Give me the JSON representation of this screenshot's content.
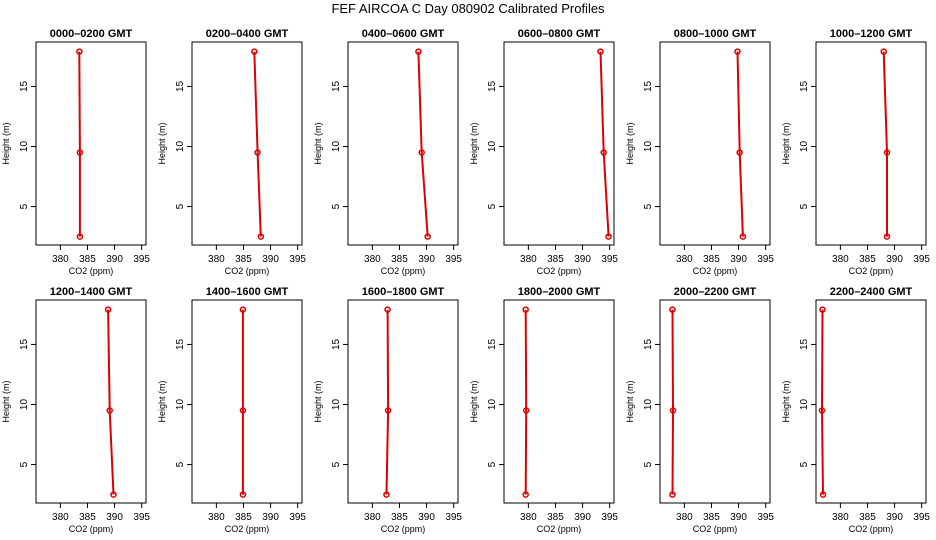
{
  "title": "FEF AIRCOA C  Day 080902  Calibrated Profiles",
  "colors": {
    "profile": "#dd0000",
    "axis": "#000000"
  },
  "chart_data": [
    {
      "type": "line",
      "title": "0000–0200 GMT",
      "xlabel": "CO2 (ppm)",
      "ylabel": "Height (m)",
      "xlim": [
        375.5,
        395.8
      ],
      "ylim": [
        1.8,
        18.7
      ],
      "xticks": [
        380,
        385,
        390,
        395
      ],
      "yticks": [
        5,
        10,
        15
      ],
      "x": [
        383.5,
        383.6,
        383.6
      ],
      "y": [
        17.9,
        9.5,
        2.5
      ]
    },
    {
      "type": "line",
      "title": "0200–0400 GMT",
      "xlabel": "CO2 (ppm)",
      "ylabel": "Height (m)",
      "xlim": [
        375.5,
        395.8
      ],
      "ylim": [
        1.8,
        18.7
      ],
      "xticks": [
        380,
        385,
        390,
        395
      ],
      "yticks": [
        5,
        10,
        15
      ],
      "x": [
        387.0,
        387.6,
        388.2
      ],
      "y": [
        17.9,
        9.5,
        2.5
      ]
    },
    {
      "type": "line",
      "title": "0400–0600 GMT",
      "xlabel": "CO2 (ppm)",
      "ylabel": "Height (m)",
      "xlim": [
        375.5,
        395.8
      ],
      "ylim": [
        1.8,
        18.7
      ],
      "xticks": [
        380,
        385,
        390,
        395
      ],
      "yticks": [
        5,
        10,
        15
      ],
      "x": [
        388.5,
        389.1,
        390.2
      ],
      "y": [
        17.9,
        9.5,
        2.5
      ]
    },
    {
      "type": "line",
      "title": "0600–0800 GMT",
      "xlabel": "CO2 (ppm)",
      "ylabel": "Height (m)",
      "xlim": [
        375.5,
        395.8
      ],
      "ylim": [
        1.8,
        18.7
      ],
      "xticks": [
        380,
        385,
        390,
        395
      ],
      "yticks": [
        5,
        10,
        15
      ],
      "x": [
        393.3,
        393.9,
        394.8
      ],
      "y": [
        17.9,
        9.5,
        2.5
      ]
    },
    {
      "type": "line",
      "title": "0800–1000 GMT",
      "xlabel": "CO2 (ppm)",
      "ylabel": "Height (m)",
      "xlim": [
        375.5,
        395.8
      ],
      "ylim": [
        1.8,
        18.7
      ],
      "xticks": [
        380,
        385,
        390,
        395
      ],
      "yticks": [
        5,
        10,
        15
      ],
      "x": [
        389.8,
        390.2,
        390.8
      ],
      "y": [
        17.9,
        9.5,
        2.5
      ]
    },
    {
      "type": "line",
      "title": "1000–1200 GMT",
      "xlabel": "CO2 (ppm)",
      "ylabel": "Height (m)",
      "xlim": [
        375.5,
        395.8
      ],
      "ylim": [
        1.8,
        18.7
      ],
      "xticks": [
        380,
        385,
        390,
        395
      ],
      "yticks": [
        5,
        10,
        15
      ],
      "x": [
        388.0,
        388.6,
        388.6
      ],
      "y": [
        17.9,
        9.5,
        2.5
      ]
    },
    {
      "type": "line",
      "title": "1200–1400 GMT",
      "xlabel": "CO2 (ppm)",
      "ylabel": "Height (m)",
      "xlim": [
        375.5,
        395.8
      ],
      "ylim": [
        1.8,
        18.7
      ],
      "xticks": [
        380,
        385,
        390,
        395
      ],
      "yticks": [
        5,
        10,
        15
      ],
      "x": [
        388.8,
        389.1,
        389.8
      ],
      "y": [
        17.9,
        9.5,
        2.5
      ]
    },
    {
      "type": "line",
      "title": "1400–1600 GMT",
      "xlabel": "CO2 (ppm)",
      "ylabel": "Height (m)",
      "xlim": [
        375.5,
        395.8
      ],
      "ylim": [
        1.8,
        18.7
      ],
      "xticks": [
        380,
        385,
        390,
        395
      ],
      "yticks": [
        5,
        10,
        15
      ],
      "x": [
        384.9,
        384.9,
        384.9
      ],
      "y": [
        17.9,
        9.5,
        2.5
      ]
    },
    {
      "type": "line",
      "title": "1600–1800 GMT",
      "xlabel": "CO2 (ppm)",
      "ylabel": "Height (m)",
      "xlim": [
        375.5,
        395.8
      ],
      "ylim": [
        1.8,
        18.7
      ],
      "xticks": [
        380,
        385,
        390,
        395
      ],
      "yticks": [
        5,
        10,
        15
      ],
      "x": [
        382.8,
        382.9,
        382.6
      ],
      "y": [
        17.9,
        9.5,
        2.5
      ]
    },
    {
      "type": "line",
      "title": "1800–2000 GMT",
      "xlabel": "CO2 (ppm)",
      "ylabel": "Height (m)",
      "xlim": [
        375.5,
        395.8
      ],
      "ylim": [
        1.8,
        18.7
      ],
      "xticks": [
        380,
        385,
        390,
        395
      ],
      "yticks": [
        5,
        10,
        15
      ],
      "x": [
        379.5,
        379.6,
        379.5
      ],
      "y": [
        17.9,
        9.5,
        2.5
      ]
    },
    {
      "type": "line",
      "title": "2000–2200 GMT",
      "xlabel": "CO2 (ppm)",
      "ylabel": "Height (m)",
      "xlim": [
        375.5,
        395.8
      ],
      "ylim": [
        1.8,
        18.7
      ],
      "xticks": [
        380,
        385,
        390,
        395
      ],
      "yticks": [
        5,
        10,
        15
      ],
      "x": [
        377.8,
        377.9,
        377.8
      ],
      "y": [
        17.9,
        9.5,
        2.5
      ]
    },
    {
      "type": "line",
      "title": "2200–2400 GMT",
      "xlabel": "CO2 (ppm)",
      "ylabel": "Height (m)",
      "xlim": [
        375.5,
        395.8
      ],
      "ylim": [
        1.8,
        18.7
      ],
      "xticks": [
        380,
        385,
        390,
        395
      ],
      "yticks": [
        5,
        10,
        15
      ],
      "x": [
        376.7,
        376.6,
        376.8
      ],
      "y": [
        17.9,
        9.5,
        2.5
      ]
    }
  ]
}
